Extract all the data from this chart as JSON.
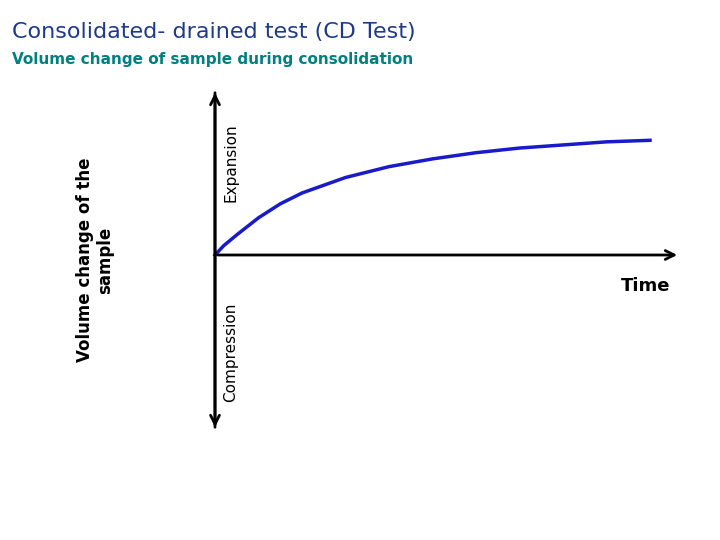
{
  "title": "Consolidated- drained test (CD Test)",
  "title_color": "#1E3A8A",
  "subtitle": "Volume change of sample during consolidation",
  "subtitle_color": "#008080",
  "ylabel": "Volume change of the\nsample",
  "ylabel_color": "#000000",
  "expansion_label": "Expansion",
  "compression_label": "Compression",
  "time_label": "Time",
  "curve_color": "#1a1acd",
  "axis_color": "#000000",
  "background_color": "#ffffff",
  "title_fontsize": 16,
  "subtitle_fontsize": 11,
  "ylabel_fontsize": 12,
  "annotation_fontsize": 11,
  "time_fontsize": 13,
  "curve_x": [
    0.0,
    0.02,
    0.05,
    0.1,
    0.15,
    0.2,
    0.3,
    0.4,
    0.5,
    0.6,
    0.7,
    0.8,
    0.9,
    1.0
  ],
  "curve_y": [
    0.0,
    -0.06,
    -0.13,
    -0.24,
    -0.33,
    -0.4,
    -0.5,
    -0.57,
    -0.62,
    -0.66,
    -0.69,
    -0.71,
    -0.73,
    -0.74
  ]
}
